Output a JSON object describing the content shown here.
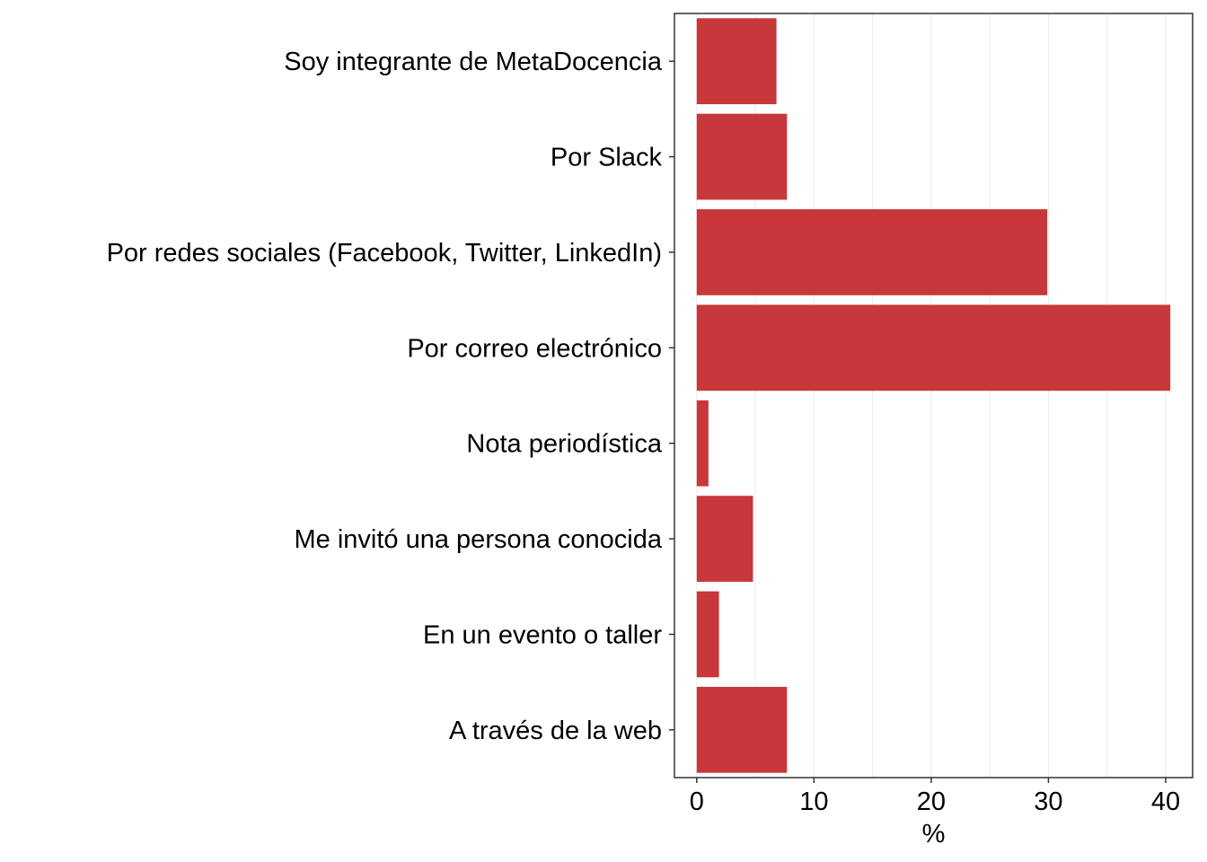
{
  "chart_data": {
    "type": "bar",
    "orientation": "horizontal",
    "categories": [
      "Soy integrante de MetaDocencia",
      "Por Slack",
      "Por redes sociales (Facebook, Twitter, LinkedIn)",
      "Por correo electrónico",
      "Nota periodística",
      "Me invitó una persona conocida",
      "En un evento o taller",
      "A través de la web"
    ],
    "values": [
      6.8,
      7.7,
      29.9,
      40.4,
      1.0,
      4.8,
      1.9,
      7.7
    ],
    "xlabel": "%",
    "ylabel": "",
    "xlim": [
      -1.9,
      42.3
    ],
    "xticks": [
      0,
      10,
      20,
      30,
      40
    ],
    "grid": "vertical",
    "bar_color": "#c8373a"
  }
}
